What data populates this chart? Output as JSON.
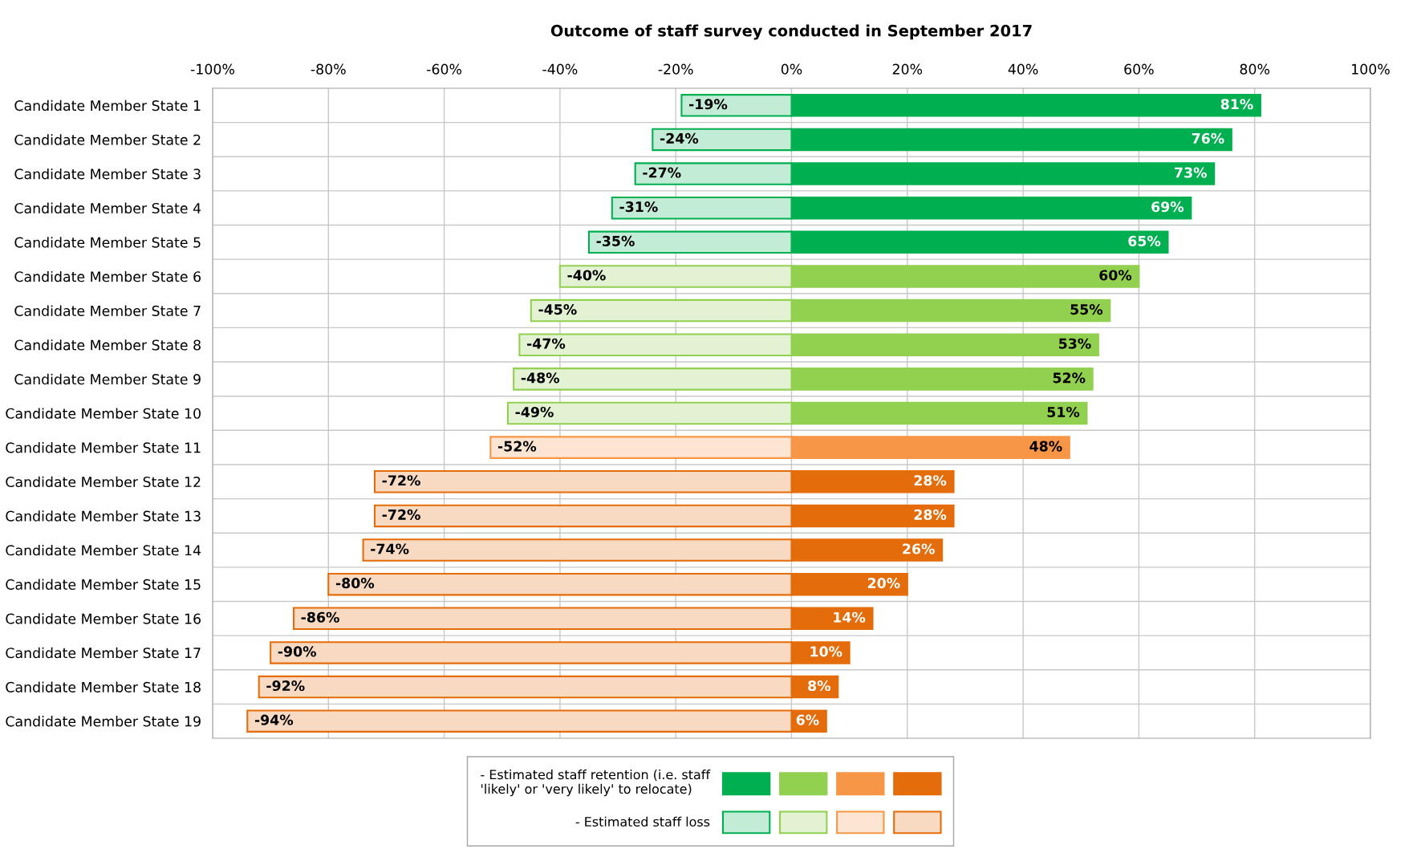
{
  "chart_data": {
    "type": "bar",
    "orientation": "horizontal",
    "title": "Outcome of staff survey conducted in September 2017",
    "categories": [
      "Candidate Member State 1",
      "Candidate Member State 2",
      "Candidate Member State 3",
      "Candidate Member State 4",
      "Candidate Member State 5",
      "Candidate Member State 6",
      "Candidate Member State 7",
      "Candidate Member State 8",
      "Candidate Member State 9",
      "Candidate Member State 10",
      "Candidate Member State 11",
      "Candidate Member State 12",
      "Candidate Member State 13",
      "Candidate Member State 14",
      "Candidate Member State 15",
      "Candidate Member State 16",
      "Candidate Member State 17",
      "Candidate Member State 18",
      "Candidate Member State 19"
    ],
    "series": [
      {
        "name": "- Estimated staff retention (i.e. staff 'likely' or 'very likely' to relocate)",
        "values": [
          81,
          76,
          73,
          69,
          65,
          60,
          55,
          53,
          52,
          51,
          48,
          28,
          28,
          26,
          20,
          14,
          10,
          8,
          6
        ],
        "value_labels": [
          "81%",
          "76%",
          "73%",
          "69%",
          "65%",
          "60%",
          "55%",
          "53%",
          "52%",
          "51%",
          "48%",
          "28%",
          "28%",
          "26%",
          "20%",
          "14%",
          "10%",
          "8%",
          "6%"
        ],
        "colors": [
          "#00b050",
          "#00b050",
          "#00b050",
          "#00b050",
          "#00b050",
          "#92d050",
          "#92d050",
          "#92d050",
          "#92d050",
          "#92d050",
          "#f79646",
          "#e46c0a",
          "#e46c0a",
          "#e46c0a",
          "#e46c0a",
          "#e46c0a",
          "#e46c0a",
          "#e46c0a",
          "#e46c0a"
        ]
      },
      {
        "name": "- Estimated staff loss",
        "values": [
          -19,
          -24,
          -27,
          -31,
          -35,
          -40,
          -45,
          -47,
          -48,
          -49,
          -52,
          -72,
          -72,
          -74,
          -80,
          -86,
          -90,
          -92,
          -94
        ],
        "value_labels": [
          "-19%",
          "-24%",
          "-27%",
          "-31%",
          "-35%",
          "-40%",
          "-45%",
          "-47%",
          "-48%",
          "-49%",
          "-52%",
          "-72%",
          "-72%",
          "-74%",
          "-80%",
          "-86%",
          "-90%",
          "-92%",
          "-94%"
        ],
        "colors": [
          "#c3ecd6",
          "#c3ecd6",
          "#c3ecd6",
          "#c3ecd6",
          "#c3ecd6",
          "#e3f2d3",
          "#e3f2d3",
          "#e3f2d3",
          "#e3f2d3",
          "#e3f2d3",
          "#fce5d3",
          "#f8d9c2",
          "#f8d9c2",
          "#f8d9c2",
          "#f8d9c2",
          "#f8d9c2",
          "#f8d9c2",
          "#f8d9c2",
          "#f8d9c2"
        ]
      }
    ],
    "xlim": [
      -100,
      100
    ],
    "xticks": [
      {
        "value": -100,
        "label": "-100%"
      },
      {
        "value": -80,
        "label": "-80%"
      },
      {
        "value": -60,
        "label": "-60%"
      },
      {
        "value": -40,
        "label": "-40%"
      },
      {
        "value": -20,
        "label": "-20%"
      },
      {
        "value": 0,
        "label": "0%"
      },
      {
        "value": 20,
        "label": "20%"
      },
      {
        "value": 40,
        "label": "40%"
      },
      {
        "value": 60,
        "label": "60%"
      },
      {
        "value": 80,
        "label": "80%"
      },
      {
        "value": 100,
        "label": "100%"
      }
    ],
    "grid": true,
    "legend": "bottom",
    "stacked": true
  }
}
